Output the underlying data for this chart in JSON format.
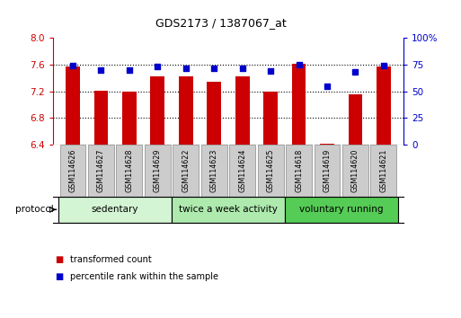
{
  "title": "GDS2173 / 1387067_at",
  "samples": [
    "GSM114626",
    "GSM114627",
    "GSM114628",
    "GSM114629",
    "GSM114622",
    "GSM114623",
    "GSM114624",
    "GSM114625",
    "GSM114618",
    "GSM114619",
    "GSM114620",
    "GSM114621"
  ],
  "transformed_count": [
    7.58,
    7.21,
    7.2,
    7.42,
    7.42,
    7.35,
    7.42,
    7.2,
    7.61,
    6.41,
    7.15,
    7.58
  ],
  "percentile_rank": [
    74,
    70,
    70,
    73,
    72,
    72,
    72,
    69,
    75,
    55,
    68,
    74
  ],
  "bar_bottom": 6.4,
  "ylim_left": [
    6.4,
    8.0
  ],
  "ylim_right": [
    0,
    100
  ],
  "yticks_left": [
    6.4,
    6.8,
    7.2,
    7.6,
    8.0
  ],
  "yticks_right": [
    0,
    25,
    50,
    75,
    100
  ],
  "groups": [
    {
      "label": "sedentary",
      "start": 0,
      "end": 4,
      "color": "#d4f5d4"
    },
    {
      "label": "twice a week activity",
      "start": 4,
      "end": 8,
      "color": "#aeeaae"
    },
    {
      "label": "voluntary running",
      "start": 8,
      "end": 12,
      "color": "#55cc55"
    }
  ],
  "bar_color": "#cc0000",
  "dot_color": "#0000cc",
  "bar_width": 0.5,
  "left_axis_color": "#cc0000",
  "right_axis_color": "#0000cc",
  "protocol_label": "protocol",
  "legend_items": [
    {
      "label": "transformed count",
      "color": "#cc0000"
    },
    {
      "label": "percentile rank within the sample",
      "color": "#0000cc"
    }
  ],
  "tick_bg_color": "#cccccc",
  "tick_border_color": "#888888"
}
